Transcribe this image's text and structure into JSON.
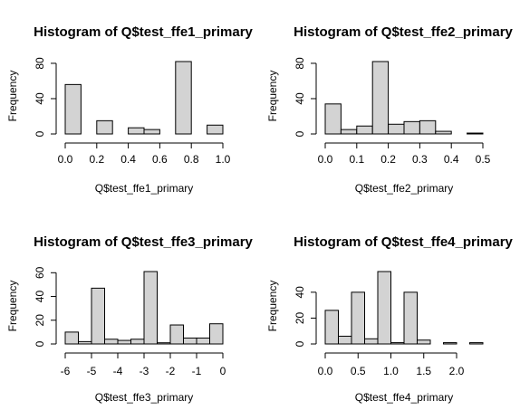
{
  "chart_data": [
    {
      "type": "bar",
      "title": "Histogram of Q$test_ffe1_primary",
      "xlabel": "Q$test_ffe1_primary",
      "ylabel": "Frequency",
      "breaks": [
        0,
        0.1,
        0.2,
        0.3,
        0.4,
        0.5,
        0.6,
        0.7,
        0.8,
        0.9,
        1.0
      ],
      "values": [
        56,
        0,
        15,
        0,
        7,
        5,
        0,
        82,
        0,
        10
      ],
      "xticks": [
        0,
        0.2,
        0.4,
        0.6,
        0.8,
        1.0
      ],
      "xtick_labels": [
        "0.0",
        "0.2",
        "0.4",
        "0.6",
        "0.8",
        "1.0"
      ],
      "yticks": [
        0,
        40,
        80
      ],
      "ytick_labels": [
        "0",
        "40",
        "80"
      ],
      "xlim": [
        0,
        1.0
      ],
      "ylim": [
        0,
        82
      ],
      "fill": "#d3d3d3"
    },
    {
      "type": "bar",
      "title": "Histogram of Q$test_ffe2_primary",
      "xlabel": "Q$test_ffe2_primary",
      "ylabel": "Frequency",
      "breaks": [
        0,
        0.05,
        0.1,
        0.15,
        0.2,
        0.25,
        0.3,
        0.35,
        0.4,
        0.45,
        0.5
      ],
      "values": [
        34,
        5,
        9,
        82,
        11,
        14,
        15,
        3,
        0,
        1
      ],
      "xticks": [
        0,
        0.1,
        0.2,
        0.3,
        0.4,
        0.5
      ],
      "xtick_labels": [
        "0.0",
        "0.1",
        "0.2",
        "0.3",
        "0.4",
        "0.5"
      ],
      "yticks": [
        0,
        40,
        80
      ],
      "ytick_labels": [
        "0",
        "40",
        "80"
      ],
      "xlim": [
        0,
        0.5
      ],
      "ylim": [
        0,
        82
      ],
      "fill": "#d3d3d3"
    },
    {
      "type": "bar",
      "title": "Histogram of Q$test_ffe3_primary",
      "xlabel": "Q$test_ffe3_primary",
      "ylabel": "Frequency",
      "breaks": [
        -6,
        -5.5,
        -5,
        -4.5,
        -4,
        -3.5,
        -3,
        -2.5,
        -2,
        -1.5,
        -1,
        -0.5,
        0
      ],
      "values": [
        10,
        2,
        47,
        4,
        3,
        4,
        61,
        1,
        16,
        5,
        5,
        17
      ],
      "xticks": [
        -6,
        -5,
        -4,
        -3,
        -2,
        -1,
        0
      ],
      "xtick_labels": [
        "-6",
        "-5",
        "-4",
        "-3",
        "-2",
        "-1",
        "0"
      ],
      "yticks": [
        0,
        20,
        40,
        60
      ],
      "ytick_labels": [
        "0",
        "20",
        "40",
        "60"
      ],
      "xlim": [
        -6,
        0
      ],
      "ylim": [
        0,
        61
      ],
      "fill": "#d3d3d3"
    },
    {
      "type": "bar",
      "title": "Histogram of Q$test_ffe4_primary",
      "xlabel": "Q$test_ffe4_primary",
      "ylabel": "Frequency",
      "breaks": [
        0,
        0.2,
        0.4,
        0.6,
        0.8,
        1.0,
        1.2,
        1.4,
        1.6,
        1.8,
        2.0,
        2.2,
        2.4
      ],
      "values": [
        26,
        6,
        40,
        4,
        56,
        1,
        40,
        3,
        0,
        1,
        0,
        1
      ],
      "xticks": [
        0,
        0.5,
        1.0,
        1.5,
        2.0
      ],
      "xtick_labels": [
        "0.0",
        "0.5",
        "1.0",
        "1.5",
        "2.0"
      ],
      "yticks": [
        0,
        20,
        40
      ],
      "ytick_labels": [
        "0",
        "20",
        "40"
      ],
      "xlim": [
        0,
        2.4
      ],
      "ylim": [
        0,
        56
      ],
      "fill": "#d3d3d3"
    }
  ]
}
